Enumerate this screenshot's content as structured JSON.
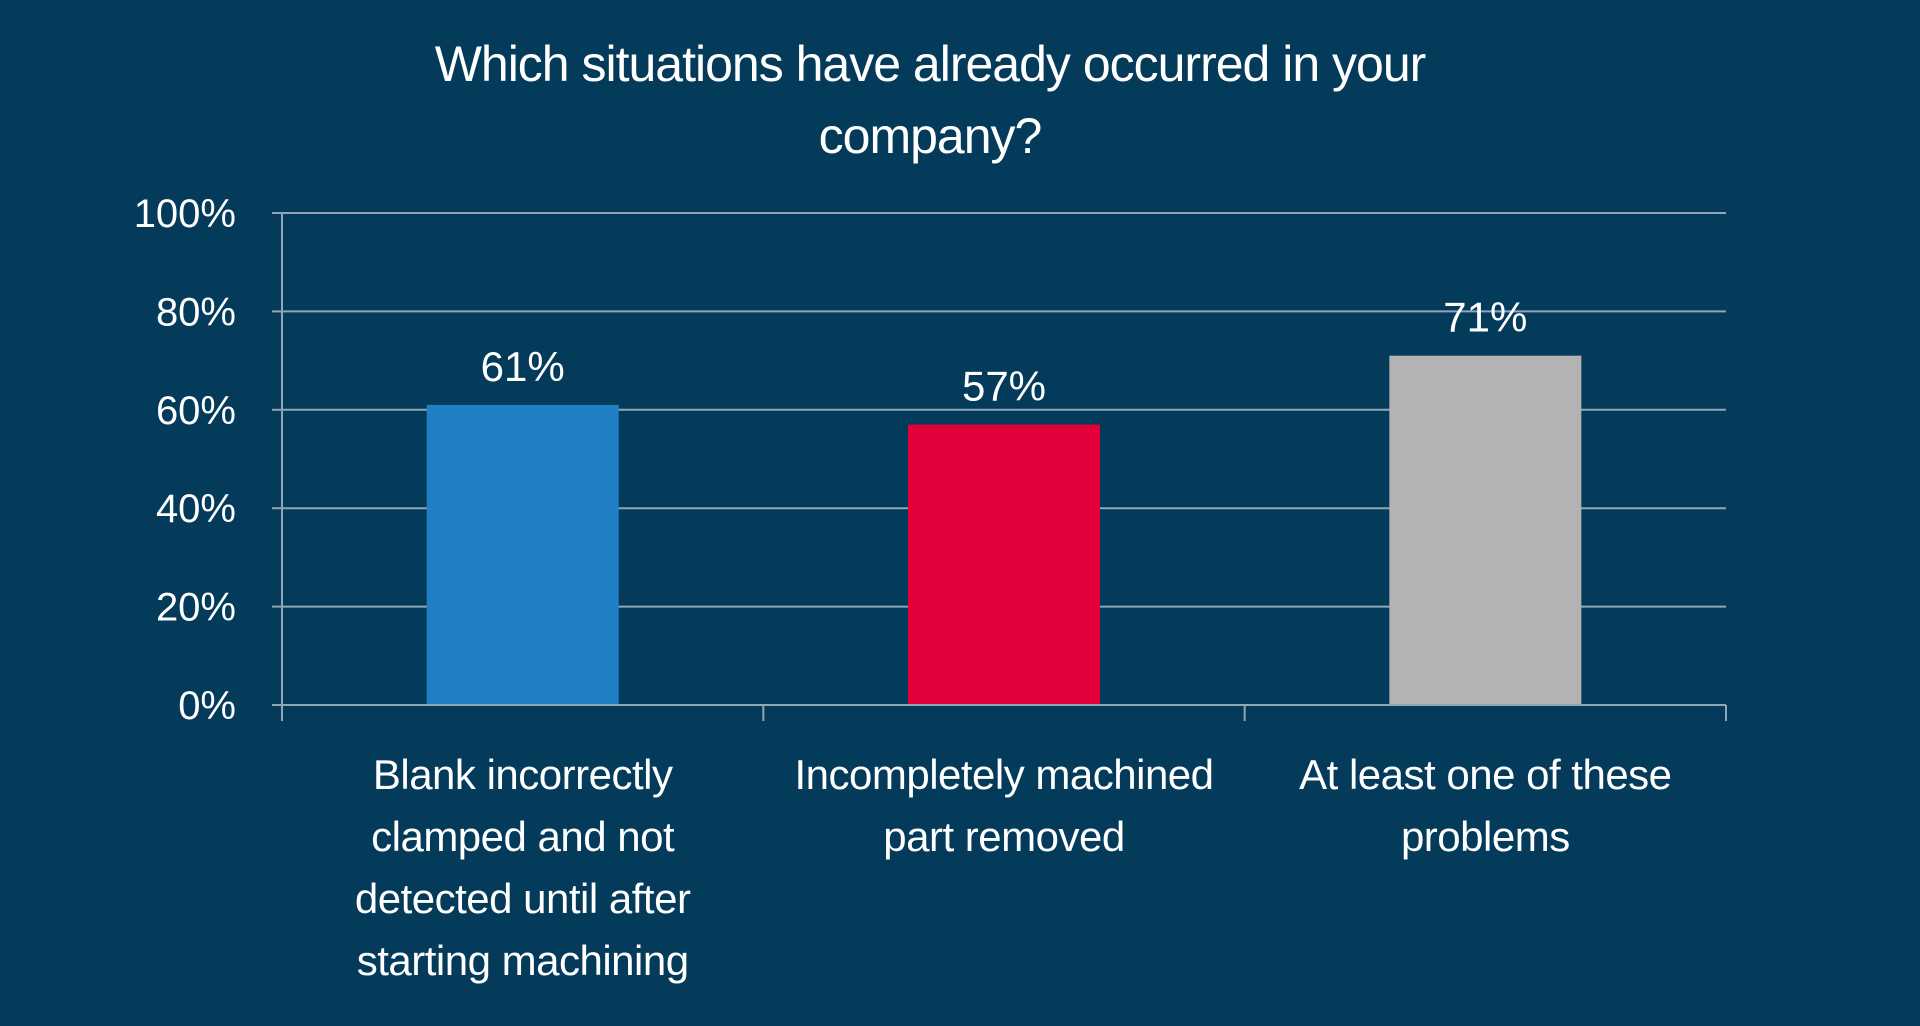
{
  "chart_data": {
    "type": "bar",
    "title": "Which situations have already occurred in your company?",
    "categories": [
      "Blank incorrectly clamped and not detected until after starting machining",
      "Incompletely machined part removed",
      "At least one of these problems"
    ],
    "values": [
      61,
      57,
      71
    ],
    "data_labels": [
      "61%",
      "57%",
      "71%"
    ],
    "colors": [
      "#1f7fc4",
      "#e3003a",
      "#b3b3b3"
    ],
    "ylim": [
      0,
      100
    ],
    "yticks": [
      0,
      20,
      40,
      60,
      80,
      100
    ],
    "ytick_labels": [
      "0%",
      "20%",
      "40%",
      "60%",
      "80%",
      "100%"
    ],
    "grid": true,
    "legend": "none",
    "background": "#043a5a",
    "gridline_color": "#8fa7b8"
  }
}
